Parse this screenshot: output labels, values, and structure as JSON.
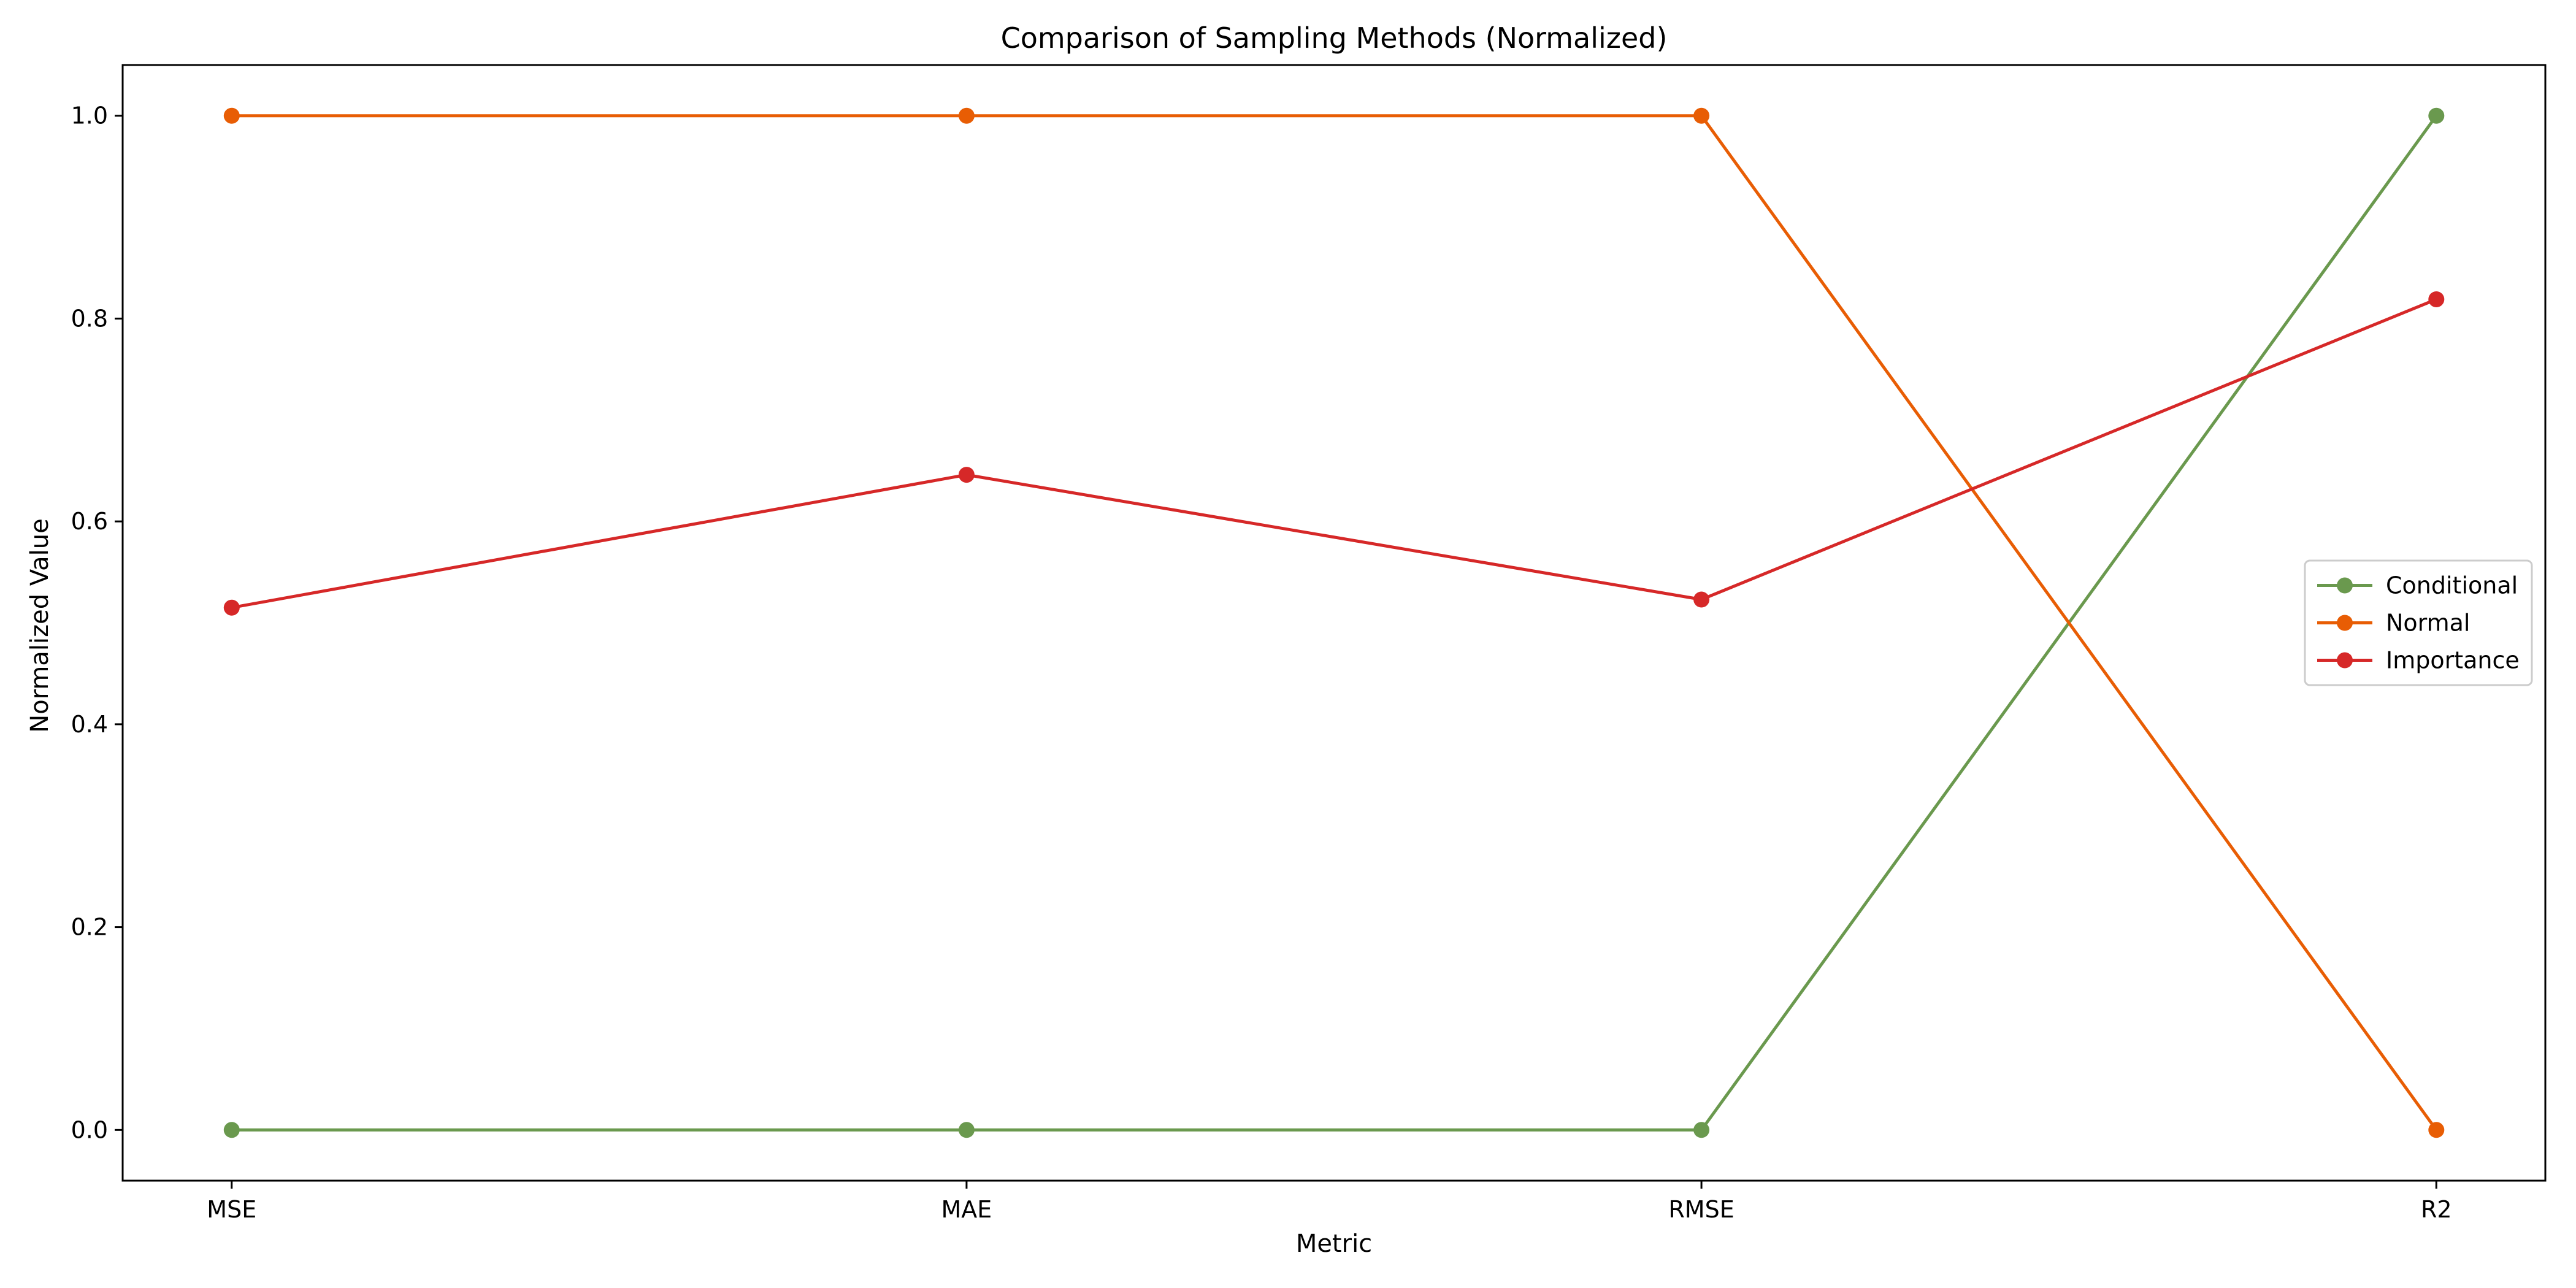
{
  "chart_data": {
    "type": "line",
    "title": "Comparison of Sampling Methods (Normalized)",
    "xlabel": "Metric",
    "ylabel": "Normalized Value",
    "categories": [
      "MSE",
      "MAE",
      "RMSE",
      "R2"
    ],
    "ylim": [
      -0.05,
      1.05
    ],
    "yticks": [
      0.0,
      0.2,
      0.4,
      0.6,
      0.8,
      1.0
    ],
    "ytick_labels": [
      "0.0",
      "0.2",
      "0.4",
      "0.6",
      "0.8",
      "1.0"
    ],
    "grid": false,
    "legend_position": "center-right",
    "series": [
      {
        "name": "Conditional",
        "color": "#6a994e",
        "values": [
          0.0,
          0.0,
          0.0,
          1.0
        ]
      },
      {
        "name": "Normal",
        "color": "#e85d04",
        "values": [
          1.0,
          1.0,
          1.0,
          0.0
        ]
      },
      {
        "name": "Importance",
        "color": "#d62828",
        "values": [
          0.515,
          0.646,
          0.523,
          0.819
        ]
      }
    ]
  }
}
